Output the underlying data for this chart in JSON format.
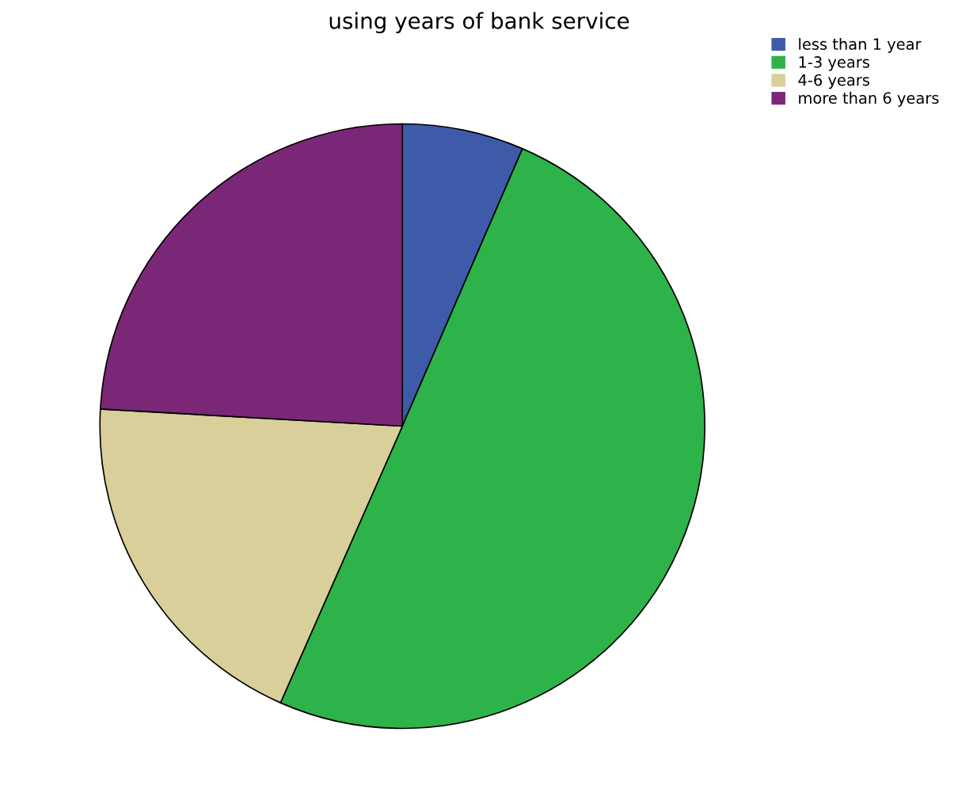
{
  "chart_data": {
    "type": "pie",
    "title": "using years of bank service",
    "categories": [
      "less than 1 year",
      "1-3 years",
      "4-6 years",
      "more than 6 years"
    ],
    "values": [
      6.5,
      50.1,
      19.3,
      24.1
    ],
    "colors": [
      "#3d5ba8",
      "#2db34a",
      "#d8cf9a",
      "#7b2778"
    ],
    "legend": "top right"
  }
}
